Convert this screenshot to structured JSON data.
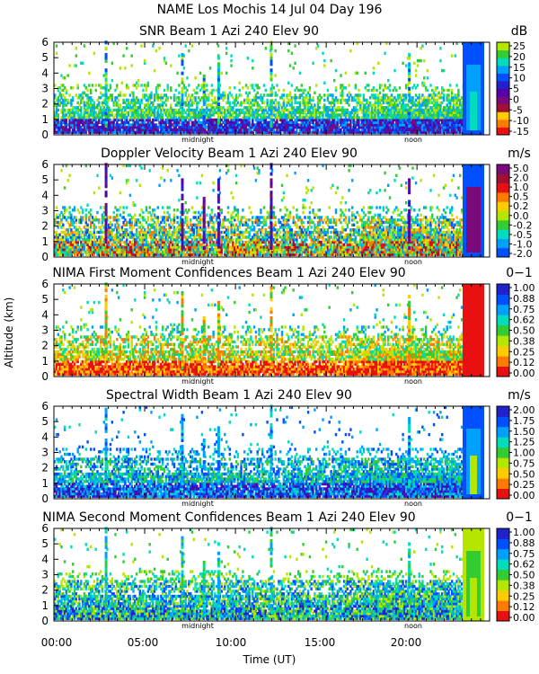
{
  "header": {
    "title": "NAME Los Mochis    14 Jul 04 Day 196"
  },
  "axes": {
    "ylabel": "Altitude (km)",
    "xlabel": "Time (UT)",
    "x_ticks": [
      "00:00",
      "05:00",
      "10:00",
      "15:00",
      "20:00"
    ],
    "y_ticks": [
      "0",
      "1",
      "2",
      "3",
      "4",
      "5",
      "6"
    ],
    "markers": {
      "midnight": "midnight",
      "noon": "noon"
    }
  },
  "colors": {
    "scale": [
      "#b4e600",
      "#33cc33",
      "#00ddbb",
      "#00a0ff",
      "#0050ff",
      "#2222cc",
      "#5500aa",
      "#7a0a7a",
      "#a01030",
      "#e81010",
      "#ff7a00",
      "#ffcc00"
    ],
    "background": "#ffffff"
  },
  "chart_data": [
    {
      "type": "heatmap",
      "title": "SNR Beam 1 Azi 240 Elev 90",
      "unit": "dB",
      "colorbar_ticks": [
        "25",
        "20",
        "15",
        "10",
        "5",
        "0",
        "-5",
        "-10",
        "-15"
      ],
      "x_range_hours": [
        0,
        24
      ],
      "y_range_km": [
        0,
        6
      ],
      "legend_location": "right"
    },
    {
      "type": "heatmap",
      "title": "Doppler Velocity Beam 1 Azi 240 Elev 90",
      "unit": "m/s",
      "colorbar_ticks": [
        "5.0",
        "2.0",
        "1.0",
        "0.5",
        "0.2",
        "0.0",
        "-0.2",
        "-0.5",
        "-1.0",
        "-2.0"
      ],
      "x_range_hours": [
        0,
        24
      ],
      "y_range_km": [
        0,
        6
      ],
      "legend_location": "right"
    },
    {
      "type": "heatmap",
      "title": "NIMA First Moment Confidences Beam 1 Azi 240 Elev 90",
      "unit": "0−1",
      "colorbar_ticks": [
        "1.00",
        "0.88",
        "0.75",
        "0.62",
        "0.50",
        "0.38",
        "0.25",
        "0.12",
        "0.00"
      ],
      "x_range_hours": [
        0,
        24
      ],
      "y_range_km": [
        0,
        6
      ],
      "legend_location": "right"
    },
    {
      "type": "heatmap",
      "title": "Spectral Width Beam 1 Azi 240 Elev 90",
      "unit": "m/s",
      "colorbar_ticks": [
        "2.00",
        "1.75",
        "1.50",
        "1.25",
        "1.00",
        "0.75",
        "0.50",
        "0.25",
        "0.00"
      ],
      "x_range_hours": [
        0,
        24
      ],
      "y_range_km": [
        0,
        6
      ],
      "legend_location": "right"
    },
    {
      "type": "heatmap",
      "title": "NIMA Second Moment Confidences Beam 1 Azi 240 Elev 90",
      "unit": "0−1",
      "colorbar_ticks": [
        "1.00",
        "0.88",
        "0.75",
        "0.62",
        "0.50",
        "0.38",
        "0.25",
        "0.12",
        "0.00"
      ],
      "x_range_hours": [
        0,
        24
      ],
      "y_range_km": [
        0,
        6
      ],
      "legend_location": "right"
    }
  ]
}
